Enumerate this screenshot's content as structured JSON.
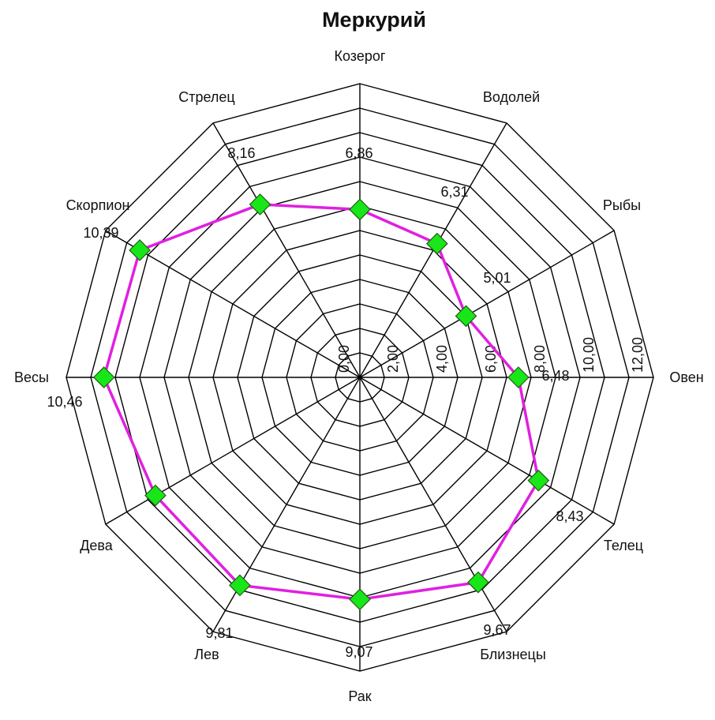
{
  "chart_data": {
    "type": "radar",
    "title": "Меркурий",
    "categories": [
      "Козерог",
      "Водолей",
      "Рыбы",
      "Овен",
      "Телец",
      "Близнецы",
      "Рак",
      "Лев",
      "Дева",
      "Весы",
      "Скорпион",
      "Стрелец"
    ],
    "values": [
      6.86,
      6.31,
      5.01,
      6.48,
      8.43,
      9.67,
      9.07,
      9.81,
      9.65,
      10.46,
      10.39,
      8.16
    ],
    "value_labels": [
      "6,86",
      "6,31",
      "5,01",
      "6,48",
      "8,43",
      "9,67",
      "9,07",
      "9,81",
      "",
      "10,46",
      "10,39",
      "8,16"
    ],
    "ticks": [
      "0,00",
      "2,00",
      "4,00",
      "6,00",
      "8,00",
      "10,00",
      "12,00"
    ],
    "tick_values": [
      0,
      2,
      4,
      6,
      8,
      10,
      12
    ],
    "rlim": [
      0,
      12
    ],
    "grid": true,
    "legend": "none",
    "colors": {
      "line": "#e020e0",
      "marker": "#19e619",
      "grid": "#000000"
    }
  }
}
